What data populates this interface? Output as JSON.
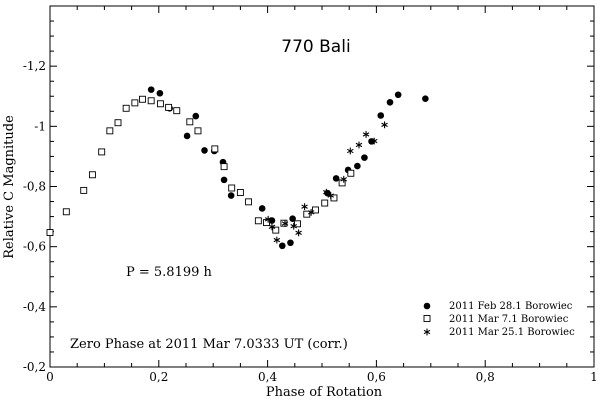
{
  "chart_data": {
    "type": "scatter",
    "title": "770 Bali",
    "xlabel": "Phase of Rotation",
    "ylabel": "Relative C Magnitude",
    "xlim": [
      0,
      1
    ],
    "ylim": [
      -0.2,
      -1.4
    ],
    "y_axis_inverted": true,
    "xticks": [
      0,
      0.2,
      0.4,
      0.6,
      0.8,
      1
    ],
    "xtick_labels": [
      "0",
      "0,2",
      "0,4",
      "0,6",
      "0,8",
      "1"
    ],
    "yticks": [
      -0.2,
      -0.4,
      -0.6,
      -0.8,
      -1.0,
      -1.2
    ],
    "ytick_labels": [
      "-0,2",
      "-0,4",
      "-0,6",
      "-0,8",
      "-1",
      "-1,2"
    ],
    "grid": false,
    "legend_position": "bottom-right",
    "annotations": {
      "period": "P = 5.8199 h",
      "zero_phase": "Zero Phase at 2011 Mar 7.0333 UT (corr.)"
    },
    "series": [
      {
        "name": "2011 Feb 28.1 Borowiec",
        "marker": "filled-circle",
        "points": [
          [
            0.186,
            -1.122
          ],
          [
            0.202,
            -1.11
          ],
          [
            0.22,
            -1.06
          ],
          [
            0.252,
            -0.968
          ],
          [
            0.268,
            -1.034
          ],
          [
            0.284,
            -0.92
          ],
          [
            0.302,
            -0.918
          ],
          [
            0.318,
            -0.881
          ],
          [
            0.32,
            -0.822
          ],
          [
            0.333,
            -0.77
          ],
          [
            0.39,
            -0.727
          ],
          [
            0.408,
            -0.687
          ],
          [
            0.427,
            -0.603
          ],
          [
            0.442,
            -0.613
          ],
          [
            0.446,
            -0.693
          ],
          [
            0.51,
            -0.778
          ],
          [
            0.526,
            -0.827
          ],
          [
            0.548,
            -0.855
          ],
          [
            0.565,
            -0.868
          ],
          [
            0.578,
            -0.896
          ],
          [
            0.591,
            -0.95
          ],
          [
            0.608,
            -1.036
          ],
          [
            0.625,
            -1.08
          ],
          [
            0.64,
            -1.105
          ],
          [
            0.69,
            -1.092
          ]
        ]
      },
      {
        "name": "2011 Mar 7.1 Borowiec",
        "marker": "open-square",
        "points": [
          [
            0.0,
            -0.647
          ],
          [
            0.03,
            -0.716
          ],
          [
            0.062,
            -0.787
          ],
          [
            0.078,
            -0.839
          ],
          [
            0.095,
            -0.915
          ],
          [
            0.11,
            -0.985
          ],
          [
            0.125,
            -1.012
          ],
          [
            0.14,
            -1.06
          ],
          [
            0.156,
            -1.078
          ],
          [
            0.17,
            -1.09
          ],
          [
            0.186,
            -1.085
          ],
          [
            0.203,
            -1.075
          ],
          [
            0.218,
            -1.063
          ],
          [
            0.233,
            -1.052
          ],
          [
            0.257,
            -1.015
          ],
          [
            0.272,
            -0.985
          ],
          [
            0.303,
            -0.925
          ],
          [
            0.32,
            -0.866
          ],
          [
            0.334,
            -0.795
          ],
          [
            0.35,
            -0.78
          ],
          [
            0.365,
            -0.749
          ],
          [
            0.383,
            -0.686
          ],
          [
            0.398,
            -0.68
          ],
          [
            0.415,
            -0.655
          ],
          [
            0.43,
            -0.678
          ],
          [
            0.455,
            -0.676
          ],
          [
            0.472,
            -0.708
          ],
          [
            0.488,
            -0.722
          ],
          [
            0.505,
            -0.745
          ],
          [
            0.522,
            -0.762
          ],
          [
            0.537,
            -0.812
          ],
          [
            0.553,
            -0.844
          ]
        ]
      },
      {
        "name": "2011 Mar 25.1 Borowiec",
        "marker": "asterisk",
        "points": [
          [
            0.401,
            -0.691
          ],
          [
            0.408,
            -0.666
          ],
          [
            0.417,
            -0.622
          ],
          [
            0.432,
            -0.677
          ],
          [
            0.448,
            -0.668
          ],
          [
            0.457,
            -0.646
          ],
          [
            0.468,
            -0.733
          ],
          [
            0.48,
            -0.714
          ],
          [
            0.508,
            -0.781
          ],
          [
            0.516,
            -0.77
          ],
          [
            0.54,
            -0.824
          ],
          [
            0.552,
            -0.918
          ],
          [
            0.568,
            -0.938
          ],
          [
            0.581,
            -0.973
          ],
          [
            0.596,
            -0.951
          ],
          [
            0.615,
            -1.005
          ]
        ]
      }
    ]
  }
}
